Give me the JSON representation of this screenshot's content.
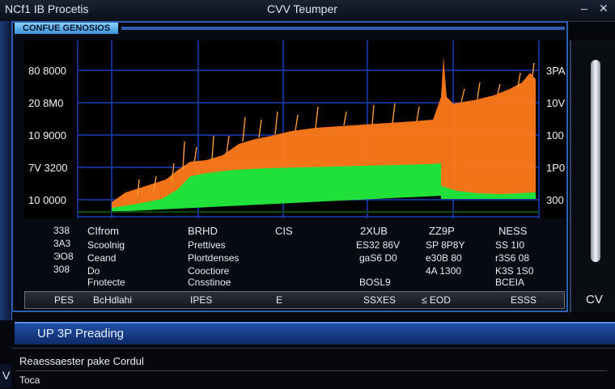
{
  "window": {
    "app_title": "NCf1 IB Procetis",
    "title": "CVV Teumper",
    "min_glyph": "–",
    "close_glyph": "✕"
  },
  "panel": {
    "tab_label": "CONFUE GENOSIOS"
  },
  "graph": {
    "y_labels": [
      "80 8000",
      "20 8M0",
      "10 9000",
      "7V 3200",
      "10 0000"
    ],
    "right_labels": [
      "3PA",
      "10V",
      "100",
      "1P0",
      "300"
    ],
    "colors": {
      "orange": "#ff7a1a",
      "green": "#20e03a",
      "grid": "#1a3fb8"
    }
  },
  "table": {
    "row_labels": [
      "338",
      "3A3",
      "ЭO8",
      "308"
    ],
    "headers": [
      "CIfrom",
      "BRHD",
      "CIS",
      "2XUB",
      "ZZ9P",
      "NESS"
    ],
    "rows": [
      [
        "Scoolnig",
        "Prettives",
        "",
        "ES32 86V",
        "SP 8P8Y",
        "SS 1I0"
      ],
      [
        "Ceand",
        "Plortdenses",
        "",
        "gaS6 D0",
        "e30B 80",
        "r3S6 08"
      ],
      [
        "Do",
        "Cooctiore",
        "",
        "",
        "4A 1300",
        "K3S 1S0"
      ],
      [
        "Fnotecte",
        "Cnsstinoe",
        "",
        "BOSL9",
        "",
        "BCEIA"
      ]
    ]
  },
  "status": {
    "items": [
      "PES",
      "BcHdlahi",
      "IPES",
      "E",
      "SSXES",
      "≤ EOD",
      "ESSS"
    ]
  },
  "right_panel": {
    "label": "CV"
  },
  "bottom": {
    "tab_label": "UP 3P Preading",
    "line1": "Reaessaester pake Cordul",
    "line2": "Toca"
  }
}
